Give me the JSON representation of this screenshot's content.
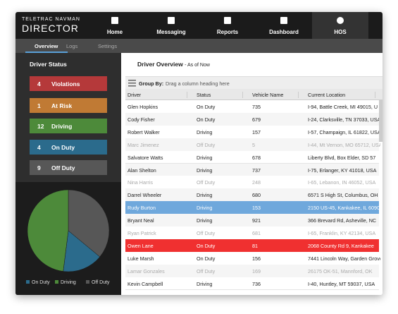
{
  "header": {
    "brand_top": "TELETRAC NAVMAN",
    "brand": "DIRECTOR",
    "nav": [
      "Home",
      "Messaging",
      "Reports",
      "Dashboard",
      "HOS"
    ]
  },
  "subnav": [
    "Overview",
    "Logs",
    "Settings"
  ],
  "sidebar": {
    "title": "Driver Status",
    "statuses": [
      {
        "count": 4,
        "label": "Violations",
        "color": "#b5393a"
      },
      {
        "count": 1,
        "label": "At Risk",
        "color": "#c07a34"
      },
      {
        "count": 12,
        "label": "Driving",
        "color": "#4d8a3a"
      },
      {
        "count": 4,
        "label": "On Duty",
        "color": "#2b6b8c"
      },
      {
        "count": 9,
        "label": "Off Duty",
        "color": "#575757"
      }
    ],
    "legend": [
      "On Duty",
      "Driving",
      "Off Duty"
    ]
  },
  "panel": {
    "title": "Driver Overview",
    "subtitle": "- As of Now",
    "group_by": "Group By:",
    "group_hint": "Drag a column heading here",
    "columns": [
      "Driver",
      "Status",
      "Vehicle Name",
      "Current Location"
    ],
    "rows": [
      [
        "Glen Hopkins",
        "On Duty",
        "735",
        "I-94, Battle Creek, MI 49015, U"
      ],
      [
        "Cody Fisher",
        "On Duty",
        "679",
        "I-24, Clarksville, TN 37033, USA"
      ],
      [
        "Robert Walker",
        "Driving",
        "157",
        "I-57, Champaign, IL 61822, USA"
      ],
      [
        "Marc Jimenez",
        "Off Duty",
        "5",
        "I-44, Mt Vernon, MO 65712, USA"
      ],
      [
        "Salvatore Watts",
        "Driving",
        "678",
        "Liberty Blvd, Box Elder, SD 57"
      ],
      [
        "Alan Shelton",
        "Driving",
        "737",
        "I-75, Erlanger, KY 41018, USA"
      ],
      [
        "Nina Harris",
        "Off Duty",
        "248",
        "I-65, Lebanon, IN 46052, USA"
      ],
      [
        "Darrel Wheeler",
        "Driving",
        "680",
        "6571 S High St, Columbus, OH"
      ],
      [
        "Rudy Burton",
        "Driving",
        "153",
        "2150 US-45, Kankakee, IL 6090"
      ],
      [
        "Bryant Neal",
        "Driving",
        "921",
        "366 Brevard Rd, Asheville, NC"
      ],
      [
        "Ryan Patrick",
        "Off Duty",
        "681",
        "I-65, Franklin, KY 42134, USA"
      ],
      [
        "Owen Lane",
        "On Duty",
        "81",
        "2068 County Rd 9, Kankakee"
      ],
      [
        "Luke Marsh",
        "On Duty",
        "156",
        "7441 Lincoln Way, Garden Grove"
      ],
      [
        "Lamar Gonzales",
        "Off Duty",
        "169",
        "26175 OK-51, Mannford, OK"
      ],
      [
        "Kevin Campbell",
        "Driving",
        "736",
        "I-40, Huntley, MT 59037, USA"
      ]
    ]
  }
}
